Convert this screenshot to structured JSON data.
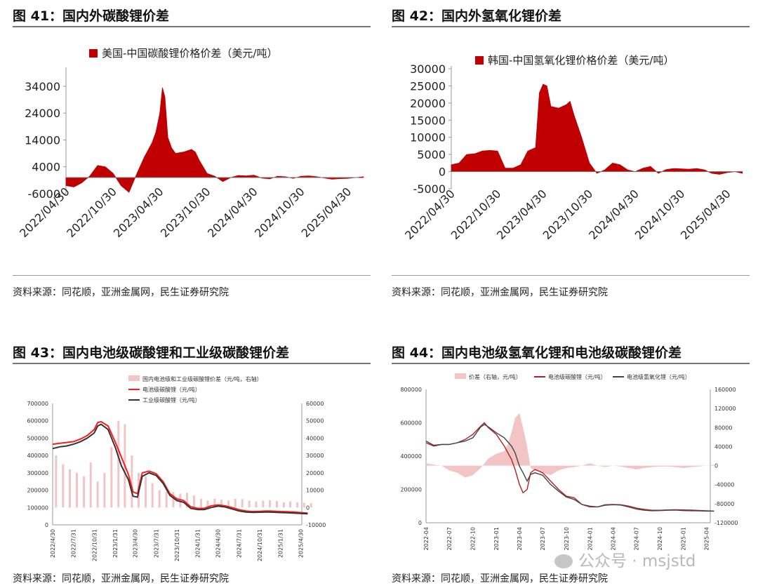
{
  "panels": {
    "p41": {
      "title": "图 41：国内外碳酸锂价差",
      "source": "资料来源：同花顺，亚洲金属网，民生证券研究院"
    },
    "p42": {
      "title": "图 42：国内外氢氧化锂价差",
      "source": "资料来源：同花顺，亚洲金属网，民生证券研究院"
    },
    "p43": {
      "title": "图 43：国内电池级碳酸锂和工业级碳酸锂价差",
      "source": "资料来源：同花顺，亚洲金属网，民生证券研究院"
    },
    "p44": {
      "title": "图 44：国内电池级氢氧化锂和电池级碳酸锂价差",
      "source": "资料来源：同花顺，亚洲金属网，民生证券研究院"
    }
  },
  "watermark": "公众号 · msjstd",
  "colors": {
    "dark_red": "#c00000",
    "red": "#ff1a1a",
    "black": "#333333",
    "pink": "#f2c4c4",
    "grey_axis": "#999999"
  },
  "chart_data": [
    {
      "id": "fig41",
      "type": "area",
      "legend": [
        "美国-中国碳酸锂价格价差（美元/吨）"
      ],
      "legend_position": "top",
      "ylim": [
        -6000,
        40000
      ],
      "yticks": [
        -6000,
        4000,
        14000,
        24000,
        34000
      ],
      "xticks": [
        "2022/04/30",
        "2022/10/30",
        "2023/04/30",
        "2023/10/30",
        "2024/04/30",
        "2024/10/30",
        "2025/04/30"
      ],
      "series": [
        {
          "name": "美国-中国碳酸锂价格价差（美元/吨）",
          "color": "#c00000",
          "x": [
            "2022-04-30",
            "2022-05-31",
            "2022-06-30",
            "2022-07-31",
            "2022-08-31",
            "2022-09-30",
            "2022-10-31",
            "2022-11-30",
            "2022-12-31",
            "2023-01-31",
            "2023-02-28",
            "2023-03-31",
            "2023-04-15",
            "2023-04-30",
            "2023-05-10",
            "2023-05-20",
            "2023-05-31",
            "2023-06-15",
            "2023-06-30",
            "2023-07-31",
            "2023-08-31",
            "2023-09-15",
            "2023-09-30",
            "2023-10-31",
            "2023-11-30",
            "2023-12-31",
            "2024-01-31",
            "2024-02-29",
            "2024-03-31",
            "2024-04-30",
            "2024-05-31",
            "2024-06-30",
            "2024-07-31",
            "2024-08-31",
            "2024-09-30",
            "2024-10-31",
            "2024-11-30",
            "2024-12-31",
            "2025-01-31",
            "2025-02-28",
            "2025-03-31",
            "2025-04-30",
            "2025-05-31",
            "2025-06-30"
          ],
          "y": [
            -3000,
            -3500,
            -2000,
            500,
            4500,
            4000,
            1500,
            -3000,
            -5500,
            1500,
            7500,
            13000,
            17000,
            24000,
            33500,
            30000,
            15000,
            11000,
            9000,
            9500,
            10500,
            9500,
            6500,
            1500,
            500,
            -1500,
            0,
            800,
            600,
            900,
            -200,
            -500,
            500,
            300,
            -300,
            500,
            600,
            300,
            -200,
            -600,
            -400,
            -300,
            0,
            300
          ]
        }
      ]
    },
    {
      "id": "fig42",
      "type": "area",
      "legend": [
        "韩国-中国氢氧化锂价格价差（美元/吨）"
      ],
      "legend_position": "top",
      "ylim": [
        -5000,
        30000
      ],
      "yticks": [
        -5000,
        0,
        5000,
        10000,
        15000,
        20000,
        25000,
        30000
      ],
      "xticks": [
        "2022/04/30",
        "2022/10/30",
        "2023/04/30",
        "2023/10/30",
        "2024/04/30",
        "2024/10/30",
        "2025/04/30"
      ],
      "series": [
        {
          "name": "韩国-中国氢氧化锂价格价差（美元/吨）",
          "color": "#c00000",
          "x": [
            "2022-04-30",
            "2022-05-31",
            "2022-06-30",
            "2022-07-31",
            "2022-08-31",
            "2022-09-30",
            "2022-10-31",
            "2022-11-30",
            "2022-12-31",
            "2023-01-31",
            "2023-02-28",
            "2023-03-31",
            "2023-04-15",
            "2023-04-30",
            "2023-05-15",
            "2023-05-31",
            "2023-06-30",
            "2023-07-31",
            "2023-08-15",
            "2023-08-31",
            "2023-09-30",
            "2023-10-31",
            "2023-11-30",
            "2023-12-31",
            "2024-01-31",
            "2024-02-29",
            "2024-03-31",
            "2024-04-30",
            "2024-05-31",
            "2024-06-30",
            "2024-07-31",
            "2024-08-31",
            "2024-09-30",
            "2024-10-31",
            "2024-11-30",
            "2024-12-31",
            "2025-01-31",
            "2025-02-28",
            "2025-03-31",
            "2025-04-30",
            "2025-05-31",
            "2025-06-30"
          ],
          "y": [
            2000,
            2500,
            5000,
            5200,
            6000,
            6200,
            6000,
            1000,
            1000,
            2000,
            6000,
            7000,
            23000,
            25500,
            25000,
            19000,
            18500,
            19500,
            20500,
            16500,
            10000,
            2500,
            -500,
            500,
            2500,
            2000,
            500,
            0,
            1000,
            1500,
            -500,
            600,
            900,
            800,
            700,
            900,
            500,
            -500,
            -800,
            -300,
            0,
            -500
          ]
        }
      ]
    },
    {
      "id": "fig43",
      "type": "line",
      "legend": [
        "国内电池级和工业级碳酸锂价差（元/吨，右轴）",
        "电池级碳酸锂（元/吨）",
        "工业级碳酸锂（元/吨）"
      ],
      "legend_position": "top",
      "ylim": [
        0,
        700000
      ],
      "yticks": [
        0,
        100000,
        200000,
        300000,
        400000,
        500000,
        600000,
        700000
      ],
      "y2lim": [
        -10000,
        60000
      ],
      "y2ticks": [
        -10000,
        0,
        10000,
        20000,
        30000,
        40000,
        50000,
        60000
      ],
      "xticks": [
        "2022/4/30",
        "2022/7/31",
        "2022/10/31",
        "2023/1/31",
        "2023/4/30",
        "2023/7/31",
        "2023/10/31",
        "2024/1/31",
        "2024/4/30",
        "2024/7/31",
        "2024/10/31",
        "2025/1/31",
        "2025/4/30"
      ],
      "series": [
        {
          "name": "国内电池级和工业级碳酸锂价差（元/吨，右轴）",
          "kind": "bar",
          "axis": "right",
          "color": "#f2c4c4",
          "x": [
            "2022-05-15",
            "2022-06-15",
            "2022-07-15",
            "2022-08-15",
            "2022-09-15",
            "2022-10-15",
            "2022-11-15",
            "2022-12-15",
            "2023-01-15",
            "2023-02-15",
            "2023-03-15",
            "2023-04-15",
            "2023-05-15",
            "2023-06-15",
            "2023-07-15",
            "2023-08-15",
            "2023-09-15",
            "2023-10-15",
            "2023-11-15",
            "2023-12-15",
            "2024-01-15",
            "2024-02-15",
            "2024-03-15",
            "2024-04-15",
            "2024-05-15",
            "2024-06-15",
            "2024-07-15",
            "2024-08-15",
            "2024-09-15",
            "2024-10-15",
            "2024-11-15",
            "2024-12-15",
            "2025-01-15",
            "2025-02-15",
            "2025-03-15",
            "2025-04-15",
            "2025-05-15",
            "2025-06-15"
          ],
          "y": [
            30000,
            25000,
            22000,
            20000,
            18000,
            26000,
            15000,
            20000,
            35000,
            50000,
            48000,
            30000,
            20000,
            18000,
            14000,
            10000,
            9000,
            9000,
            8000,
            8500,
            7000,
            5000,
            4000,
            5000,
            4500,
            4000,
            5000,
            4800,
            4000,
            3500,
            4000,
            4200,
            3800,
            3000,
            3500,
            3000,
            2800,
            2500
          ]
        },
        {
          "name": "电池级碳酸锂（元/吨）",
          "kind": "line",
          "axis": "left",
          "color": "#ff1a1a",
          "x": [
            "2022-04-30",
            "2022-05-31",
            "2022-06-30",
            "2022-07-31",
            "2022-08-31",
            "2022-09-30",
            "2022-10-31",
            "2022-11-15",
            "2022-11-30",
            "2022-12-31",
            "2023-01-31",
            "2023-02-28",
            "2023-03-31",
            "2023-04-20",
            "2023-05-10",
            "2023-05-31",
            "2023-06-30",
            "2023-07-31",
            "2023-08-31",
            "2023-09-30",
            "2023-10-31",
            "2023-11-30",
            "2023-12-31",
            "2024-01-31",
            "2024-02-29",
            "2024-03-31",
            "2024-04-30",
            "2024-05-31",
            "2024-06-30",
            "2024-07-31",
            "2024-08-31",
            "2024-09-30",
            "2024-10-31",
            "2024-11-30",
            "2024-12-31",
            "2025-01-31",
            "2025-02-28",
            "2025-03-31",
            "2025-04-30",
            "2025-05-31"
          ],
          "y": [
            465000,
            470000,
            475000,
            480000,
            495000,
            515000,
            550000,
            590000,
            595000,
            570000,
            480000,
            390000,
            290000,
            190000,
            180000,
            300000,
            310000,
            295000,
            250000,
            180000,
            150000,
            140000,
            105000,
            95000,
            95000,
            110000,
            115000,
            110000,
            100000,
            88000,
            80000,
            77000,
            78000,
            80000,
            79000,
            77000,
            76000,
            74000,
            71000,
            68000
          ]
        },
        {
          "name": "工业级碳酸锂（元/吨）",
          "kind": "line",
          "axis": "left",
          "color": "#333333",
          "x": [
            "2022-04-30",
            "2022-05-31",
            "2022-06-30",
            "2022-07-31",
            "2022-08-31",
            "2022-09-30",
            "2022-10-31",
            "2022-11-15",
            "2022-11-30",
            "2022-12-31",
            "2023-01-31",
            "2023-02-28",
            "2023-03-31",
            "2023-04-20",
            "2023-05-10",
            "2023-05-31",
            "2023-06-30",
            "2023-07-31",
            "2023-08-31",
            "2023-09-30",
            "2023-10-31",
            "2023-11-30",
            "2023-12-31",
            "2024-01-31",
            "2024-02-29",
            "2024-03-31",
            "2024-04-30",
            "2024-05-31",
            "2024-06-30",
            "2024-07-31",
            "2024-08-31",
            "2024-09-30",
            "2024-10-31",
            "2024-11-30",
            "2024-12-31",
            "2025-01-31",
            "2025-02-28",
            "2025-03-31",
            "2025-04-30",
            "2025-05-31"
          ],
          "y": [
            440000,
            450000,
            455000,
            465000,
            480000,
            500000,
            530000,
            570000,
            580000,
            550000,
            450000,
            340000,
            260000,
            165000,
            160000,
            280000,
            300000,
            285000,
            240000,
            170000,
            140000,
            130000,
            95000,
            88000,
            88000,
            100000,
            108000,
            103000,
            92000,
            80000,
            74000,
            72000,
            73000,
            74000,
            73000,
            71000,
            70000,
            68000,
            66000,
            64000
          ]
        }
      ]
    },
    {
      "id": "fig44",
      "type": "line",
      "legend": [
        "价差（右轴，元/吨）",
        "电池级碳酸锂（元/吨）",
        "电池级氢氧化锂（元/吨）"
      ],
      "legend_position": "top",
      "ylim": [
        0,
        800000
      ],
      "yticks": [
        0,
        200000,
        400000,
        600000,
        800000
      ],
      "y2lim": [
        -120000,
        160000
      ],
      "y2ticks": [
        -120000,
        -80000,
        -40000,
        0,
        40000,
        80000,
        120000,
        160000
      ],
      "xticks": [
        "2022-04",
        "2022-07",
        "2022-10",
        "2023-01",
        "2023-04",
        "2023-07",
        "2023-10",
        "2024-01",
        "2024-04",
        "2024-07",
        "2024-10",
        "2025-01",
        "2025-04"
      ],
      "series": [
        {
          "name": "价差（右轴，元/吨）",
          "kind": "area",
          "axis": "right",
          "color": "#f2c4c4",
          "x": [
            "2022-04-01",
            "2022-05-01",
            "2022-06-01",
            "2022-07-01",
            "2022-08-01",
            "2022-09-01",
            "2022-10-01",
            "2022-11-01",
            "2022-12-01",
            "2023-01-01",
            "2023-02-01",
            "2023-02-15",
            "2023-03-01",
            "2023-03-15",
            "2023-04-01",
            "2023-04-15",
            "2023-05-01",
            "2023-05-15",
            "2023-06-01",
            "2023-07-01",
            "2023-08-01",
            "2023-09-01",
            "2023-10-01",
            "2023-11-01",
            "2023-12-01",
            "2024-01-01",
            "2024-02-01",
            "2024-03-01",
            "2024-04-01",
            "2024-05-01",
            "2024-06-01",
            "2024-07-01",
            "2024-08-01",
            "2024-09-01",
            "2024-10-01",
            "2024-11-01",
            "2024-12-01",
            "2025-01-01",
            "2025-02-01",
            "2025-03-01",
            "2025-04-01",
            "2025-05-01"
          ],
          "y": [
            5000,
            2000,
            0,
            -10000,
            -15000,
            -25000,
            -20000,
            -5000,
            15000,
            25000,
            30000,
            45000,
            70000,
            100000,
            110000,
            80000,
            40000,
            -5000,
            -10000,
            -15000,
            -20000,
            -10000,
            -5000,
            -3000,
            0,
            5000,
            0,
            -3000,
            0,
            -2000,
            -5000,
            -8000,
            -5000,
            -3000,
            -2000,
            -2000,
            -3000,
            -5000,
            -3000,
            -2000,
            0,
            2000
          ]
        },
        {
          "name": "电池级碳酸锂（元/吨）",
          "kind": "line",
          "axis": "left",
          "color": "#b22222",
          "x": [
            "2022-04-01",
            "2022-05-01",
            "2022-06-01",
            "2022-07-01",
            "2022-08-01",
            "2022-09-01",
            "2022-10-01",
            "2022-11-01",
            "2022-11-15",
            "2022-12-01",
            "2023-01-01",
            "2023-02-01",
            "2023-03-01",
            "2023-03-15",
            "2023-04-01",
            "2023-04-15",
            "2023-05-01",
            "2023-05-15",
            "2023-06-01",
            "2023-07-01",
            "2023-08-01",
            "2023-09-01",
            "2023-10-01",
            "2023-11-01",
            "2023-12-01",
            "2024-01-01",
            "2024-02-01",
            "2024-03-01",
            "2024-04-01",
            "2024-05-01",
            "2024-06-01",
            "2024-07-01",
            "2024-08-01",
            "2024-09-01",
            "2024-10-01",
            "2024-11-01",
            "2024-12-01",
            "2025-01-01",
            "2025-02-01",
            "2025-03-01",
            "2025-04-01",
            "2025-05-01"
          ],
          "y": [
            480000,
            460000,
            470000,
            470000,
            480000,
            500000,
            530000,
            580000,
            600000,
            570000,
            530000,
            460000,
            380000,
            320000,
            230000,
            180000,
            200000,
            300000,
            320000,
            300000,
            250000,
            200000,
            160000,
            150000,
            110000,
            95000,
            95000,
            108000,
            110000,
            108000,
            100000,
            88000,
            80000,
            75000,
            75000,
            77000,
            78000,
            77000,
            76000,
            74000,
            72000,
            70000
          ]
        },
        {
          "name": "电池级氢氧化锂（元/吨）",
          "kind": "line",
          "axis": "left",
          "color": "#444444",
          "x": [
            "2022-04-01",
            "2022-05-01",
            "2022-06-01",
            "2022-07-01",
            "2022-08-01",
            "2022-09-01",
            "2022-10-01",
            "2022-11-01",
            "2022-11-15",
            "2022-12-01",
            "2023-01-01",
            "2023-02-01",
            "2023-03-01",
            "2023-03-15",
            "2023-04-01",
            "2023-04-15",
            "2023-05-01",
            "2023-05-15",
            "2023-06-01",
            "2023-07-01",
            "2023-08-01",
            "2023-09-01",
            "2023-10-01",
            "2023-11-01",
            "2023-12-01",
            "2024-01-01",
            "2024-02-01",
            "2024-03-01",
            "2024-04-01",
            "2024-05-01",
            "2024-06-01",
            "2024-07-01",
            "2024-08-01",
            "2024-09-01",
            "2024-10-01",
            "2024-11-01",
            "2024-12-01",
            "2025-01-01",
            "2025-02-01",
            "2025-03-01",
            "2025-04-01",
            "2025-05-01"
          ],
          "y": [
            490000,
            465000,
            470000,
            470000,
            480000,
            490000,
            510000,
            575000,
            590000,
            575000,
            540000,
            510000,
            460000,
            420000,
            340000,
            300000,
            250000,
            290000,
            300000,
            285000,
            230000,
            190000,
            155000,
            140000,
            110000,
            100000,
            95000,
            105000,
            108000,
            106000,
            95000,
            82000,
            75000,
            72000,
            73000,
            75000,
            76000,
            73000,
            72000,
            71000,
            70000,
            70000
          ]
        }
      ]
    }
  ]
}
